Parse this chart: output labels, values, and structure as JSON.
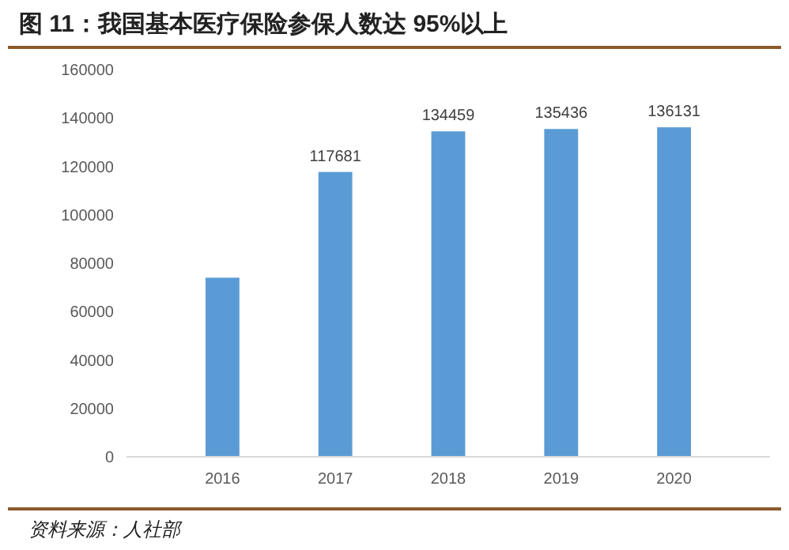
{
  "chart_data": {
    "type": "bar",
    "title": "图 11：我国基本医疗保险参保人数达 95%以上",
    "categories": [
      "2016",
      "2017",
      "2018",
      "2019",
      "2020"
    ],
    "values": [
      74000,
      117681,
      134459,
      135436,
      136131
    ],
    "value_labels": [
      null,
      "117681",
      "134459",
      "135436",
      "136131"
    ],
    "color": "#5b9bd5",
    "ylim": [
      0,
      160000
    ],
    "yticks": [
      0,
      20000,
      40000,
      60000,
      80000,
      100000,
      120000,
      140000,
      160000
    ],
    "grid": false,
    "annotations": [
      "资料来源：人社部"
    ]
  }
}
